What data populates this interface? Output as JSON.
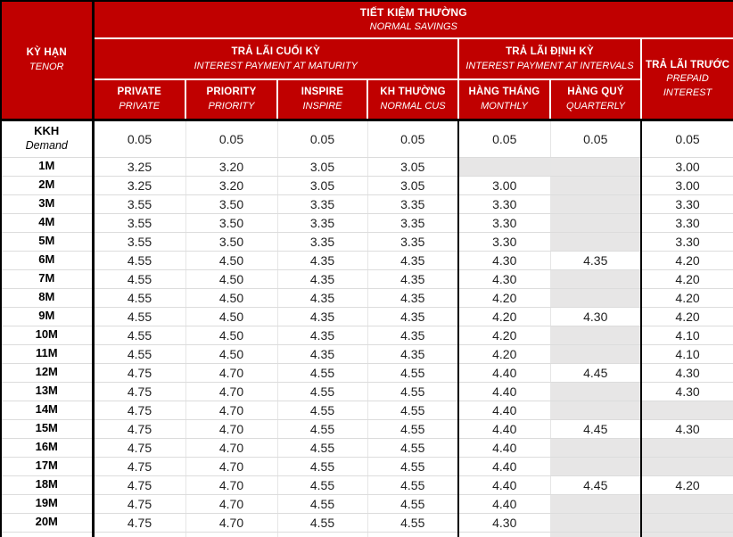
{
  "colors": {
    "header_red": "#C00000",
    "empty_cell_gray": "#E7E6E6",
    "grid_line": "#DCDCDC",
    "text_ink": "#1F1F1F"
  },
  "header": {
    "tenor": {
      "vi": "KỲ HẠN",
      "en": "TENOR"
    },
    "title": {
      "vi": "TIẾT KIỆM THƯỜNG",
      "en": "NORMAL SAVINGS"
    },
    "groups": {
      "maturity": {
        "vi": "TRẢ LÃI CUỐI KỲ",
        "en": "INTEREST PAYMENT AT MATURITY"
      },
      "intervals": {
        "vi": "TRẢ LÃI ĐỊNH KỲ",
        "en": "INTEREST PAYMENT AT INTERVALS"
      },
      "prepaid": {
        "vi": "TRẢ LÃI TRƯỚC",
        "en": "PREPAID INTEREST"
      }
    },
    "columns": [
      {
        "vi": "PRIVATE",
        "en": "PRIVATE"
      },
      {
        "vi": "PRIORITY",
        "en": "PRIORITY"
      },
      {
        "vi": "INSPIRE",
        "en": "INSPIRE"
      },
      {
        "vi": "KH THƯỜNG",
        "en": "NORMAL CUS"
      },
      {
        "vi": "HÀNG THÁNG",
        "en": "MONTHLY"
      },
      {
        "vi": "HÀNG QUÝ",
        "en": "QUARTERLY"
      }
    ]
  },
  "table": {
    "rows": [
      {
        "tenor": "KKH",
        "tenor_en": "Demand",
        "values": [
          "0.05",
          "0.05",
          "0.05",
          "0.05",
          "0.05",
          "0.05",
          "0.05"
        ]
      },
      {
        "tenor": "1M",
        "values": [
          "3.25",
          "3.20",
          "3.05",
          "3.05",
          null,
          null,
          "3.00"
        ]
      },
      {
        "tenor": "2M",
        "values": [
          "3.25",
          "3.20",
          "3.05",
          "3.05",
          "3.00",
          null,
          "3.00"
        ]
      },
      {
        "tenor": "3M",
        "values": [
          "3.55",
          "3.50",
          "3.35",
          "3.35",
          "3.30",
          null,
          "3.30"
        ]
      },
      {
        "tenor": "4M",
        "values": [
          "3.55",
          "3.50",
          "3.35",
          "3.35",
          "3.30",
          null,
          "3.30"
        ]
      },
      {
        "tenor": "5M",
        "values": [
          "3.55",
          "3.50",
          "3.35",
          "3.35",
          "3.30",
          null,
          "3.30"
        ]
      },
      {
        "tenor": "6M",
        "values": [
          "4.55",
          "4.50",
          "4.35",
          "4.35",
          "4.30",
          "4.35",
          "4.20"
        ]
      },
      {
        "tenor": "7M",
        "values": [
          "4.55",
          "4.50",
          "4.35",
          "4.35",
          "4.30",
          null,
          "4.20"
        ]
      },
      {
        "tenor": "8M",
        "values": [
          "4.55",
          "4.50",
          "4.35",
          "4.35",
          "4.20",
          null,
          "4.20"
        ]
      },
      {
        "tenor": "9M",
        "values": [
          "4.55",
          "4.50",
          "4.35",
          "4.35",
          "4.20",
          "4.30",
          "4.20"
        ]
      },
      {
        "tenor": "10M",
        "values": [
          "4.55",
          "4.50",
          "4.35",
          "4.35",
          "4.20",
          null,
          "4.10"
        ]
      },
      {
        "tenor": "11M",
        "values": [
          "4.55",
          "4.50",
          "4.35",
          "4.35",
          "4.20",
          null,
          "4.10"
        ]
      },
      {
        "tenor": "12M",
        "values": [
          "4.75",
          "4.70",
          "4.55",
          "4.55",
          "4.40",
          "4.45",
          "4.30"
        ]
      },
      {
        "tenor": "13M",
        "values": [
          "4.75",
          "4.70",
          "4.55",
          "4.55",
          "4.40",
          null,
          "4.30"
        ]
      },
      {
        "tenor": "14M",
        "values": [
          "4.75",
          "4.70",
          "4.55",
          "4.55",
          "4.40",
          null,
          null
        ]
      },
      {
        "tenor": "15M",
        "values": [
          "4.75",
          "4.70",
          "4.55",
          "4.55",
          "4.40",
          "4.45",
          "4.30"
        ]
      },
      {
        "tenor": "16M",
        "values": [
          "4.75",
          "4.70",
          "4.55",
          "4.55",
          "4.40",
          null,
          null
        ]
      },
      {
        "tenor": "17M",
        "values": [
          "4.75",
          "4.70",
          "4.55",
          "4.55",
          "4.40",
          null,
          null
        ]
      },
      {
        "tenor": "18M",
        "values": [
          "4.75",
          "4.70",
          "4.55",
          "4.55",
          "4.40",
          "4.45",
          "4.20"
        ]
      },
      {
        "tenor": "19M",
        "values": [
          "4.75",
          "4.70",
          "4.55",
          "4.55",
          "4.40",
          null,
          null
        ]
      },
      {
        "tenor": "20M",
        "values": [
          "4.75",
          "4.70",
          "4.55",
          "4.55",
          "4.30",
          null,
          null
        ]
      }
    ]
  }
}
